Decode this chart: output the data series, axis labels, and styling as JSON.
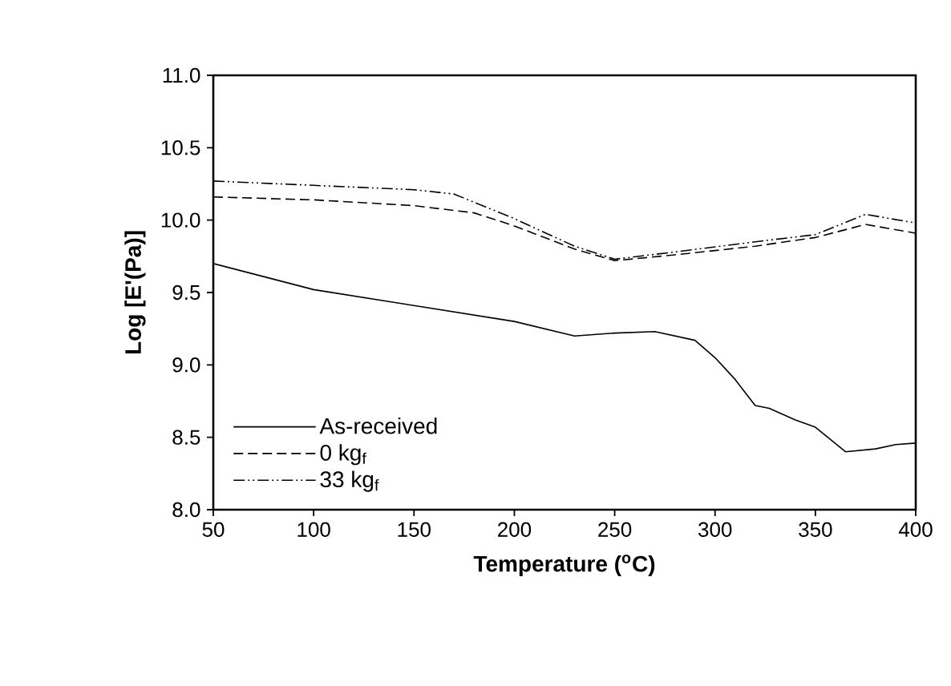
{
  "chart_data": {
    "type": "line",
    "xlabel": "Temperature ($^{o}$C)",
    "ylabel": "Log [E'(Pa)]",
    "xlim": [
      50,
      400
    ],
    "xticks": [
      50,
      100,
      150,
      200,
      250,
      300,
      350,
      400
    ],
    "ylim": [
      8.0,
      11.0
    ],
    "yticks": [
      {
        "value": 8.0,
        "label": "8.0"
      },
      {
        "value": 8.5,
        "label": "8.5"
      },
      {
        "value": 9.0,
        "label": "9.0"
      },
      {
        "value": 9.5,
        "label": "9.5"
      },
      {
        "value": 10.0,
        "label": "10.0"
      },
      {
        "value": 10.5,
        "label": "10.5"
      },
      {
        "value": 11.0,
        "label": "11.0"
      }
    ],
    "grid": false,
    "legend": "bottom left",
    "marker": "none",
    "series": [
      {
        "name": "As-received",
        "color": "#000000",
        "line_style": "solid",
        "x": [
          50,
          100,
          150,
          200,
          230,
          250,
          270,
          290,
          300,
          310,
          320,
          327,
          340,
          350,
          358,
          365,
          380,
          390,
          400
        ],
        "values": [
          9.7,
          9.52,
          9.41,
          9.3,
          9.2,
          9.22,
          9.23,
          9.17,
          9.05,
          8.9,
          8.72,
          8.7,
          8.62,
          8.57,
          8.48,
          8.4,
          8.42,
          8.45,
          8.46
        ]
      },
      {
        "name": "0 kg$_{f}$",
        "color": "#000000",
        "line_style": "dashed",
        "x": [
          50,
          100,
          150,
          180,
          200,
          230,
          250,
          280,
          320,
          350,
          375,
          400
        ],
        "values": [
          10.16,
          10.14,
          10.1,
          10.05,
          9.96,
          9.8,
          9.72,
          9.76,
          9.82,
          9.88,
          9.97,
          9.91
        ]
      },
      {
        "name": "33 kg$_{f}$",
        "color": "#000000",
        "line_style": "dashdotdotted",
        "x": [
          50,
          100,
          150,
          170,
          200,
          230,
          250,
          280,
          320,
          350,
          375,
          400
        ],
        "values": [
          10.27,
          10.24,
          10.21,
          10.18,
          10.01,
          9.82,
          9.73,
          9.78,
          9.85,
          9.9,
          10.04,
          9.98
        ]
      }
    ]
  }
}
